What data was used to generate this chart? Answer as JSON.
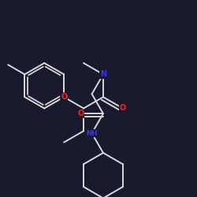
{
  "background_color": "#1a1a2e",
  "bond_color": "#d8d8d8",
  "atom_colors": {
    "O": "#ff2222",
    "N": "#3333ff",
    "C": "#d8d8d8"
  },
  "lw": 1.4,
  "fs": 7.0,
  "BL": 0.115
}
